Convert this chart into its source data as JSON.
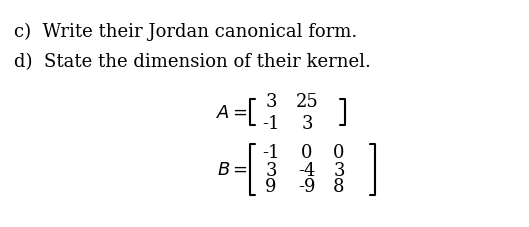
{
  "text_c": "c)  Write their Jordan canonical form.",
  "text_d": "d)  State the dimension of their kernel.",
  "A_label": "$A = $",
  "B_label": "$B = $",
  "A_matrix": [
    [
      3,
      25
    ],
    [
      -1,
      3
    ]
  ],
  "B_matrix": [
    [
      -1,
      0,
      0
    ],
    [
      3,
      -4,
      3
    ],
    [
      9,
      -9,
      8
    ]
  ],
  "bg_color": "#ffffff",
  "text_color": "#000000",
  "font_size_text": 13,
  "font_size_matrix": 13
}
